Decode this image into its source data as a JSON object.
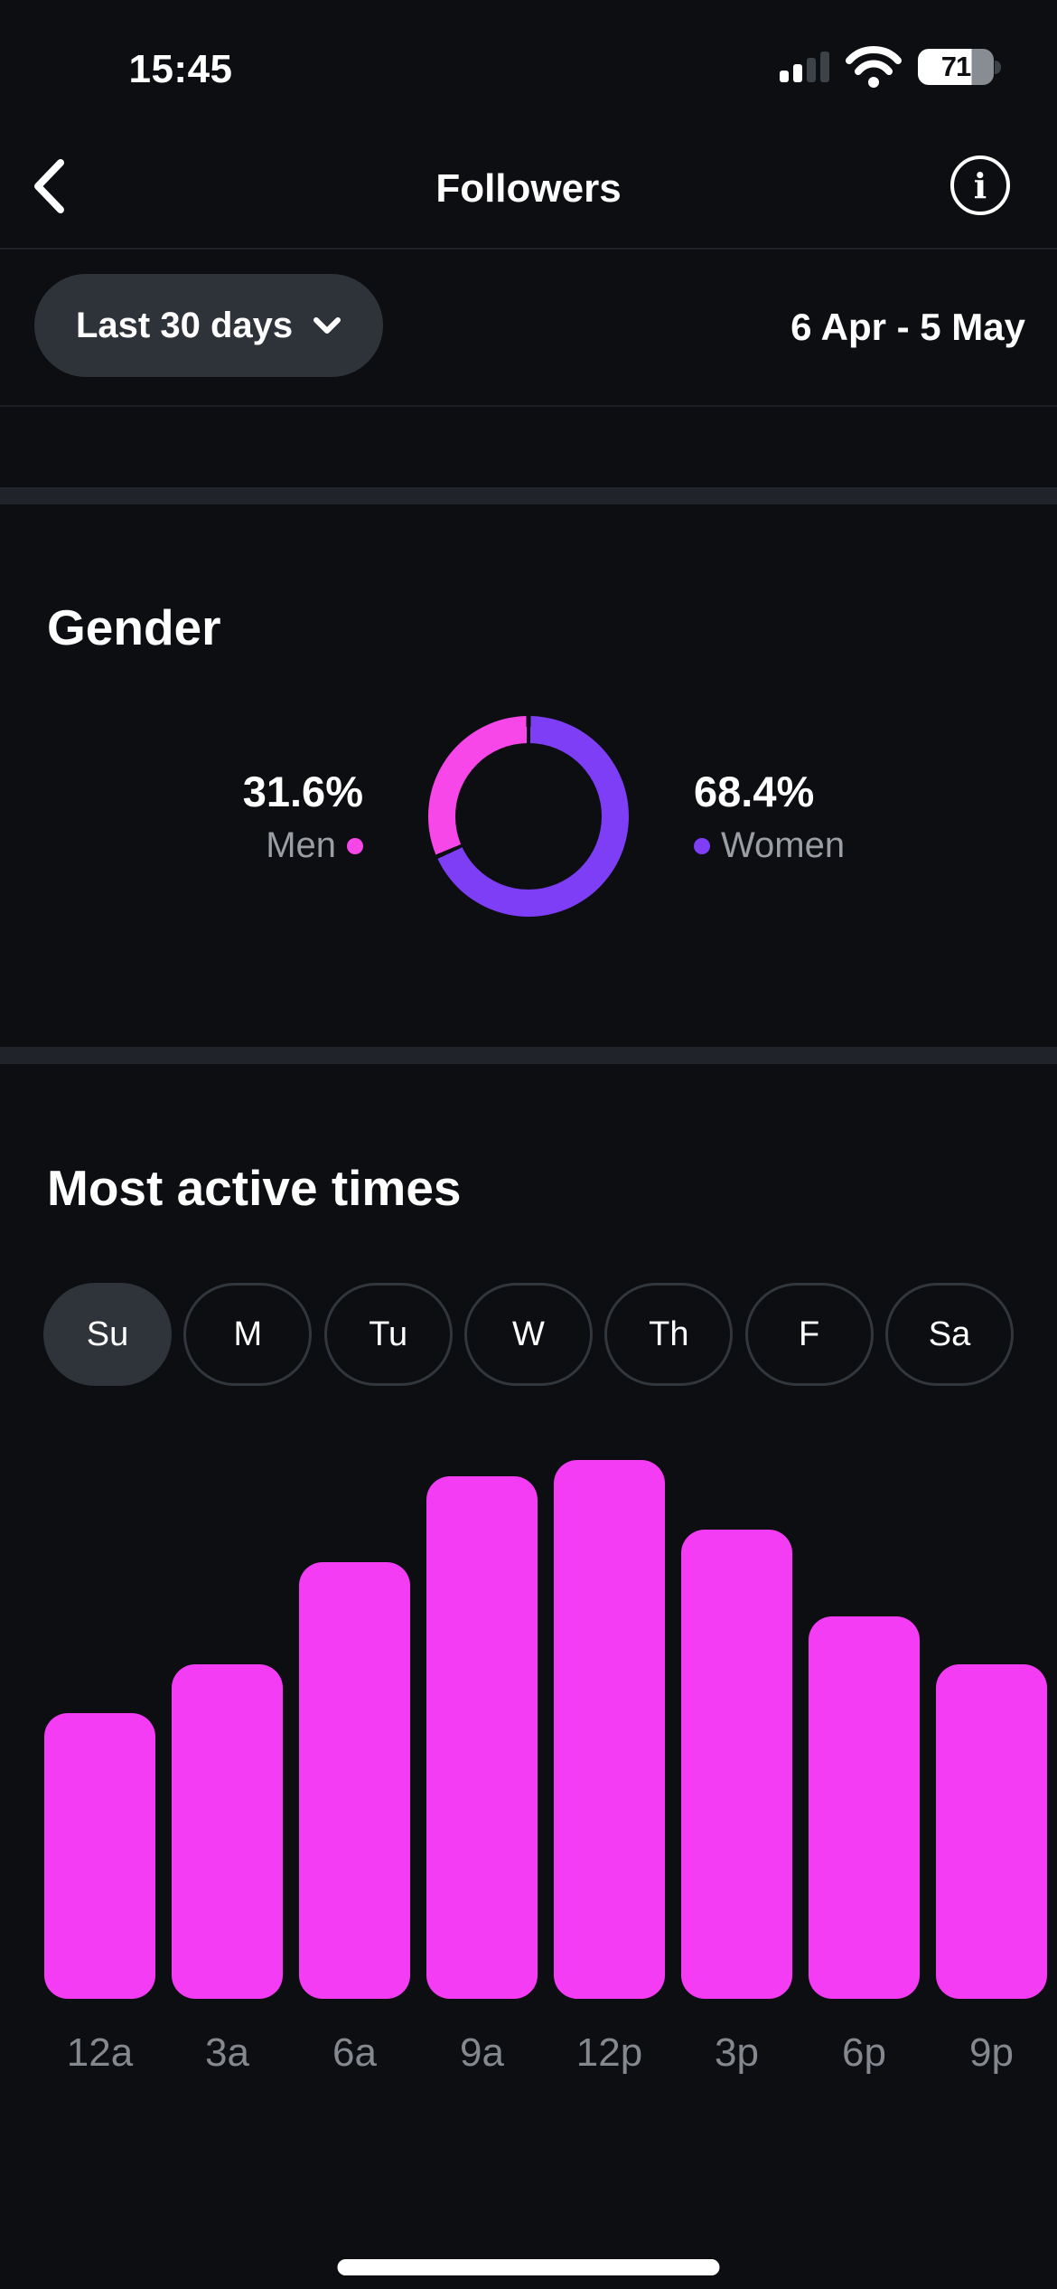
{
  "status_bar": {
    "time": "15:45",
    "battery_percent": "71"
  },
  "header": {
    "title": "Followers"
  },
  "filter": {
    "range_label": "Last 30 days",
    "date_range": "6 Apr - 5 May"
  },
  "gender": {
    "section_title": "Gender",
    "men": {
      "percent": "31.6%",
      "label": "Men"
    },
    "women": {
      "percent": "68.4%",
      "label": "Women"
    },
    "chart_data": {
      "type": "pie",
      "donut": true,
      "labels": [
        "Men",
        "Women"
      ],
      "values": [
        31.6,
        68.4
      ],
      "colors": [
        "#F747E8",
        "#7D3EF5"
      ],
      "legend_position": "sides",
      "start_angle_deg": 0
    }
  },
  "active_times": {
    "section_title": "Most active times",
    "days": [
      {
        "label": "Su",
        "selected": true
      },
      {
        "label": "M",
        "selected": false
      },
      {
        "label": "Tu",
        "selected": false
      },
      {
        "label": "W",
        "selected": false
      },
      {
        "label": "Th",
        "selected": false
      },
      {
        "label": "F",
        "selected": false
      },
      {
        "label": "Sa",
        "selected": false
      }
    ],
    "chart_data": {
      "type": "bar",
      "categories": [
        "12a",
        "3a",
        "6a",
        "9a",
        "12p",
        "3p",
        "6p",
        "9p"
      ],
      "values": [
        53,
        62,
        81,
        97,
        100,
        87,
        71,
        62
      ],
      "ylim": [
        0,
        100
      ],
      "grid": false,
      "bar_color": "#F43CF4",
      "title": "Most active times (Sunday)",
      "xlabel": "",
      "ylabel": ""
    }
  },
  "colors": {
    "background": "#0C0E12",
    "men_pink": "#F747E8",
    "women_purple": "#7D3EF5",
    "bar_magenta": "#F43CF4",
    "muted_text": "#9B9EA4",
    "axis_text": "#85888E"
  }
}
